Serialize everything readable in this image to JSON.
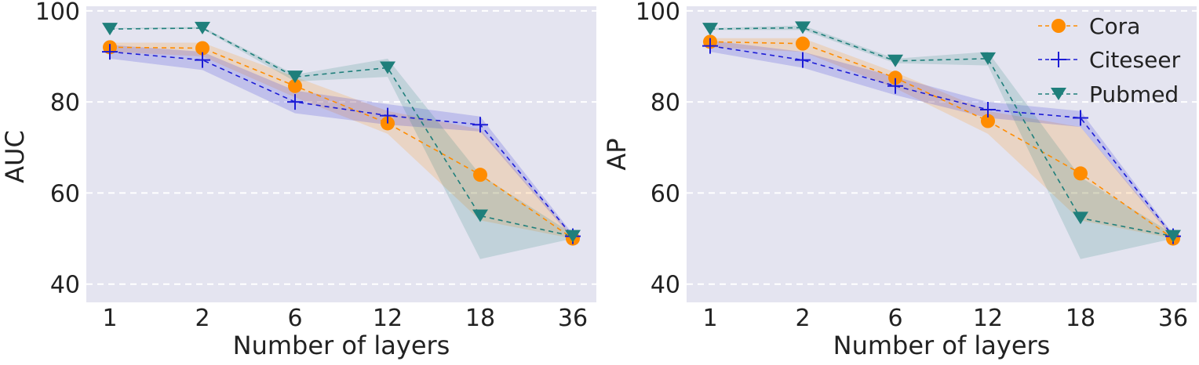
{
  "chart_data": [
    {
      "type": "line",
      "xlabel": "Number of layers",
      "ylabel": "AUC",
      "categories": [
        "1",
        "2",
        "6",
        "12",
        "18",
        "36"
      ],
      "ylim": [
        36,
        101
      ],
      "yticks": [
        40,
        60,
        80,
        100
      ],
      "grid": true,
      "series": [
        {
          "name": "Cora",
          "marker": "circle",
          "color": "#ff8c00",
          "values": [
            92,
            91.8,
            83.5,
            75.3,
            64,
            50
          ],
          "lower": [
            91,
            90,
            81,
            73,
            54,
            50
          ],
          "upper": [
            93,
            93,
            85.5,
            78,
            74,
            50.5
          ]
        },
        {
          "name": "Citeseer",
          "marker": "plus",
          "color": "#1c1cd6",
          "values": [
            91,
            89.2,
            80,
            77,
            75,
            50.5
          ],
          "lower": [
            89.5,
            87,
            77.5,
            75,
            73.5,
            50
          ],
          "upper": [
            92.5,
            91,
            82.5,
            79.5,
            76.8,
            51
          ]
        },
        {
          "name": "Pubmed",
          "marker": "triangle-down",
          "color": "#1f7f7b",
          "values": [
            96,
            96.2,
            85.5,
            87.5,
            55,
            50.5
          ],
          "lower": [
            96,
            96,
            84.5,
            85.5,
            45.5,
            50
          ],
          "upper": [
            96.2,
            96.5,
            86,
            89.5,
            64,
            51
          ]
        }
      ]
    },
    {
      "type": "line",
      "xlabel": "Number of layers",
      "ylabel": "AP",
      "categories": [
        "1",
        "2",
        "6",
        "12",
        "18",
        "36"
      ],
      "ylim": [
        36,
        101
      ],
      "yticks": [
        40,
        60,
        80,
        100
      ],
      "grid": true,
      "legend": "top-right",
      "series": [
        {
          "name": "Cora",
          "marker": "circle",
          "color": "#ff8c00",
          "values": [
            93.2,
            92.8,
            85.3,
            75.8,
            64.3,
            50
          ],
          "lower": [
            92,
            91,
            83,
            73,
            54,
            50
          ],
          "upper": [
            94,
            94,
            86.5,
            78,
            74.5,
            50.5
          ]
        },
        {
          "name": "Citeseer",
          "marker": "plus",
          "color": "#1c1cd6",
          "values": [
            92.3,
            89.2,
            83.5,
            78.3,
            76.5,
            50.5
          ],
          "lower": [
            91,
            87.5,
            81.5,
            76.5,
            74.5,
            50
          ],
          "upper": [
            93.5,
            91,
            85.5,
            80,
            78,
            51
          ]
        },
        {
          "name": "Pubmed",
          "marker": "triangle-down",
          "color": "#1f7f7b",
          "values": [
            96,
            96.3,
            89,
            89.5,
            54.5,
            50.5
          ],
          "lower": [
            95.8,
            95.8,
            88.5,
            88,
            45.5,
            50
          ],
          "upper": [
            96.2,
            96.8,
            89.5,
            91,
            63.5,
            51
          ]
        }
      ]
    }
  ]
}
